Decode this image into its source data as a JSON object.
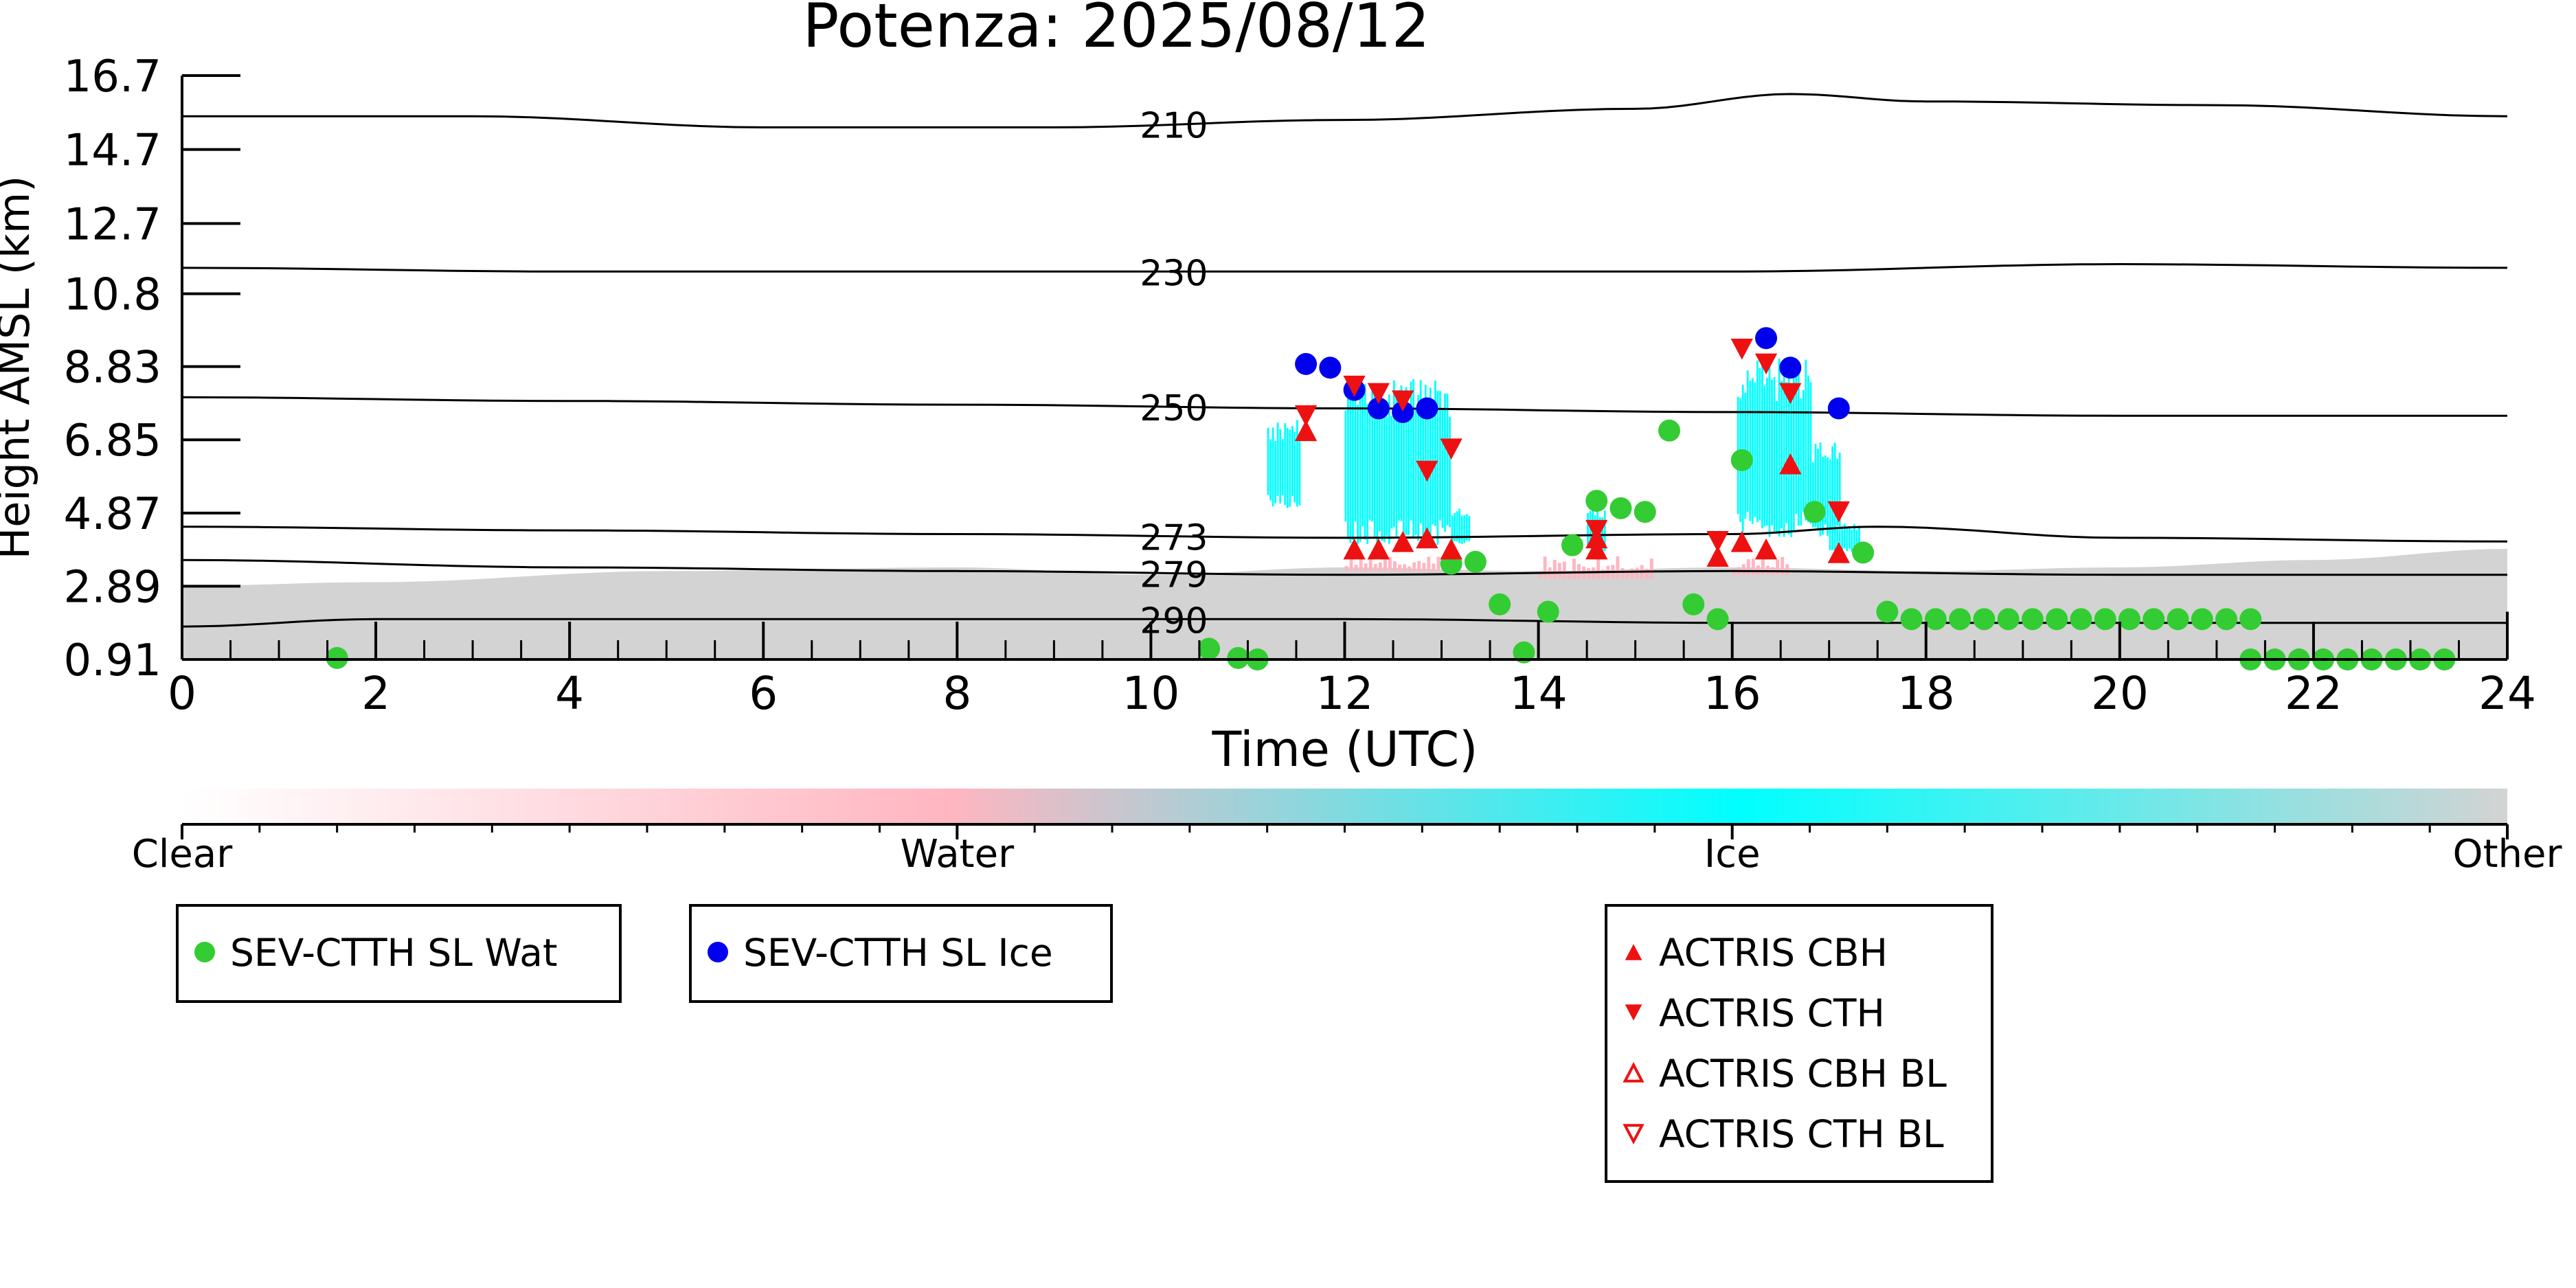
{
  "chart_data": {
    "type": "scatter",
    "title": "Potenza: 2025/08/12",
    "xlabel": "Time (UTC)",
    "ylabel": "Height AMSL (km)",
    "xlim": [
      0,
      24
    ],
    "ylim": [
      0.91,
      16.7
    ],
    "x_ticks": [
      0,
      2,
      4,
      6,
      8,
      10,
      12,
      14,
      16,
      18,
      20,
      22,
      24
    ],
    "y_ticks": [
      0.91,
      2.89,
      4.87,
      6.85,
      8.83,
      10.8,
      12.7,
      14.7,
      16.7
    ],
    "y_tick_labels": [
      "0.91",
      "2.89",
      "4.87",
      "6.85",
      "8.83",
      "10.8",
      "12.7",
      "14.7",
      "16.7"
    ],
    "grid": false,
    "colors": {
      "water_marker": "#33cc33",
      "ice_marker": "#0000ee",
      "actris": "#ee1111",
      "ice_class": "#00ffff",
      "water_class": "#ffb6c1",
      "other_class": "#d3d3d3"
    },
    "isotherms": [
      {
        "label": "210",
        "x": [
          0,
          3,
          6,
          9,
          12,
          15,
          16.6,
          18,
          21,
          24
        ],
        "y": [
          15.6,
          15.6,
          15.3,
          15.3,
          15.5,
          15.8,
          16.2,
          16.0,
          15.9,
          15.6
        ]
      },
      {
        "label": "230",
        "x": [
          0,
          4,
          8,
          12,
          16,
          20,
          24
        ],
        "y": [
          11.5,
          11.4,
          11.4,
          11.4,
          11.4,
          11.6,
          11.5
        ]
      },
      {
        "label": "250",
        "x": [
          0,
          4,
          8,
          12,
          16,
          20,
          24
        ],
        "y": [
          8.0,
          7.9,
          7.8,
          7.7,
          7.6,
          7.5,
          7.5
        ]
      },
      {
        "label": "273",
        "x": [
          0,
          4,
          8,
          12,
          16,
          17.5,
          20,
          24
        ],
        "y": [
          4.5,
          4.4,
          4.3,
          4.2,
          4.3,
          4.5,
          4.2,
          4.1
        ]
      },
      {
        "label": "279",
        "x": [
          0,
          4,
          8,
          12,
          16,
          20,
          24
        ],
        "y": [
          3.6,
          3.4,
          3.3,
          3.2,
          3.3,
          3.2,
          3.2
        ]
      },
      {
        "label": "290",
        "x": [
          0,
          2,
          4,
          8,
          12,
          16,
          20,
          24
        ],
        "y": [
          1.8,
          2.0,
          2.0,
          2.0,
          2.0,
          1.9,
          1.9,
          1.9
        ]
      }
    ],
    "classification": {
      "categories": [
        "Clear",
        "Water",
        "Ice",
        "Other"
      ],
      "other_layer": {
        "x": [
          0,
          2,
          5,
          8,
          10,
          12,
          14,
          16,
          18,
          20,
          22,
          24
        ],
        "top": [
          2.9,
          3.0,
          3.3,
          3.4,
          3.2,
          3.4,
          3.3,
          3.4,
          3.3,
          3.4,
          3.6,
          3.9
        ]
      },
      "ice_regions": [
        {
          "x0": 11.2,
          "x1": 11.55,
          "base": 5.0,
          "top": 7.4
        },
        {
          "x0": 12.0,
          "x1": 13.1,
          "base": 4.0,
          "top": 8.5
        },
        {
          "x0": 13.1,
          "x1": 13.3,
          "base": 4.0,
          "top": 5.0
        },
        {
          "x0": 14.5,
          "x1": 14.7,
          "base": 3.8,
          "top": 5.0
        },
        {
          "x0": 16.05,
          "x1": 16.8,
          "base": 4.2,
          "top": 9.1
        },
        {
          "x0": 16.8,
          "x1": 17.1,
          "base": 4.2,
          "top": 6.8
        },
        {
          "x0": 17.0,
          "x1": 17.3,
          "base": 3.8,
          "top": 4.6
        }
      ],
      "water_regions": [
        {
          "x0": 12.0,
          "x1": 13.2,
          "base": 3.3,
          "top": 3.7
        },
        {
          "x0": 14.0,
          "x1": 15.2,
          "base": 3.1,
          "top": 3.7
        },
        {
          "x0": 16.0,
          "x1": 16.6,
          "base": 3.2,
          "top": 3.7
        }
      ]
    },
    "series": [
      {
        "name": "SEV-CTTH SL Wat",
        "marker": "circle",
        "color": "#33cc33",
        "points": [
          [
            1.6,
            0.95
          ],
          [
            10.6,
            1.2
          ],
          [
            10.9,
            0.95
          ],
          [
            11.1,
            0.91
          ],
          [
            13.1,
            3.5
          ],
          [
            13.35,
            3.55
          ],
          [
            13.6,
            2.4
          ],
          [
            13.85,
            1.1
          ],
          [
            14.1,
            2.2
          ],
          [
            14.35,
            4.0
          ],
          [
            14.6,
            5.2
          ],
          [
            14.85,
            5.0
          ],
          [
            15.1,
            4.9
          ],
          [
            15.35,
            7.1
          ],
          [
            15.6,
            2.4
          ],
          [
            15.85,
            2.0
          ],
          [
            16.1,
            6.3
          ],
          [
            16.85,
            4.9
          ],
          [
            17.35,
            3.8
          ],
          [
            17.6,
            2.2
          ],
          [
            17.85,
            2.0
          ],
          [
            18.1,
            2.0
          ],
          [
            18.35,
            2.0
          ],
          [
            18.6,
            2.0
          ],
          [
            18.85,
            2.0
          ],
          [
            19.1,
            2.0
          ],
          [
            19.35,
            2.0
          ],
          [
            19.6,
            2.0
          ],
          [
            19.85,
            2.0
          ],
          [
            20.1,
            2.0
          ],
          [
            20.35,
            2.0
          ],
          [
            20.6,
            2.0
          ],
          [
            20.85,
            2.0
          ],
          [
            21.1,
            2.0
          ],
          [
            21.35,
            2.0
          ],
          [
            21.35,
            0.91
          ],
          [
            21.6,
            0.91
          ],
          [
            21.85,
            0.91
          ],
          [
            22.1,
            0.91
          ],
          [
            22.35,
            0.91
          ],
          [
            22.6,
            0.91
          ],
          [
            22.85,
            0.91
          ],
          [
            23.1,
            0.91
          ],
          [
            23.35,
            0.91
          ]
        ]
      },
      {
        "name": "SEV-CTTH SL Ice",
        "marker": "circle",
        "color": "#0000ee",
        "points": [
          [
            11.6,
            8.9
          ],
          [
            11.85,
            8.8
          ],
          [
            12.1,
            8.2
          ],
          [
            12.35,
            7.7
          ],
          [
            12.6,
            7.6
          ],
          [
            12.85,
            7.7
          ],
          [
            16.35,
            9.6
          ],
          [
            16.6,
            8.8
          ],
          [
            17.1,
            7.7
          ]
        ]
      },
      {
        "name": "ACTRIS CBH",
        "marker": "triangle-up",
        "color": "#ee1111",
        "points": [
          [
            11.6,
            7.1
          ],
          [
            12.1,
            3.9
          ],
          [
            12.35,
            3.9
          ],
          [
            12.6,
            4.1
          ],
          [
            12.85,
            4.2
          ],
          [
            13.1,
            3.9
          ],
          [
            14.6,
            3.9
          ],
          [
            14.6,
            4.2
          ],
          [
            15.85,
            3.7
          ],
          [
            16.1,
            4.1
          ],
          [
            16.35,
            3.9
          ],
          [
            16.6,
            6.2
          ],
          [
            17.1,
            3.8
          ]
        ]
      },
      {
        "name": "ACTRIS CTH",
        "marker": "triangle-down",
        "color": "#ee1111",
        "points": [
          [
            11.6,
            7.5
          ],
          [
            12.1,
            8.3
          ],
          [
            12.35,
            8.1
          ],
          [
            12.6,
            7.9
          ],
          [
            12.85,
            6.0
          ],
          [
            13.1,
            6.6
          ],
          [
            14.6,
            4.4
          ],
          [
            15.85,
            4.1
          ],
          [
            16.1,
            9.3
          ],
          [
            16.35,
            8.9
          ],
          [
            16.6,
            8.1
          ],
          [
            17.1,
            4.9
          ]
        ]
      },
      {
        "name": "ACTRIS CBH BL",
        "marker": "triangle-up-open",
        "color": "#ee1111",
        "points": []
      },
      {
        "name": "ACTRIS CTH BL",
        "marker": "triangle-down-open",
        "color": "#ee1111",
        "points": []
      }
    ]
  }
}
